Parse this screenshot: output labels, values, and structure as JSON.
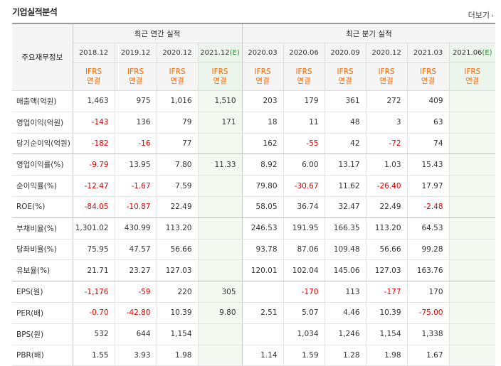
{
  "title": "기업실적분석",
  "more_label": "더보기",
  "row_header": "주요재무정보",
  "groups": {
    "annual": "최근 연간 실적",
    "quarterly": "최근 분기 실적"
  },
  "periods": [
    {
      "label": "2018.12",
      "e": ""
    },
    {
      "label": "2019.12",
      "e": ""
    },
    {
      "label": "2020.12",
      "e": ""
    },
    {
      "label": "2021.12",
      "e": "(E)"
    },
    {
      "label": "2020.03",
      "e": ""
    },
    {
      "label": "2020.06",
      "e": ""
    },
    {
      "label": "2020.09",
      "e": ""
    },
    {
      "label": "2020.12",
      "e": ""
    },
    {
      "label": "2021.03",
      "e": ""
    },
    {
      "label": "2021.06",
      "e": "(E)"
    }
  ],
  "basis": {
    "line1": "IFRS",
    "line2": "연결"
  },
  "rows": [
    {
      "label": "매출액(억원)",
      "values": [
        "1,463",
        "975",
        "1,016",
        "1,510",
        "203",
        "179",
        "361",
        "272",
        "409",
        ""
      ]
    },
    {
      "label": "영업이익(억원)",
      "values": [
        "-143",
        "136",
        "79",
        "171",
        "18",
        "11",
        "48",
        "3",
        "63",
        ""
      ]
    },
    {
      "label": "당기순이익(억원)",
      "values": [
        "-182",
        "-16",
        "77",
        "",
        "162",
        "-55",
        "42",
        "-72",
        "74",
        ""
      ]
    },
    {
      "label": "영업이익률(%)",
      "values": [
        "-9.79",
        "13.95",
        "7.80",
        "11.33",
        "8.92",
        "6.00",
        "13.17",
        "1.03",
        "15.43",
        ""
      ]
    },
    {
      "label": "순이익률(%)",
      "values": [
        "-12.47",
        "-1.67",
        "7.59",
        "",
        "79.80",
        "-30.67",
        "11.62",
        "-26.40",
        "17.97",
        ""
      ]
    },
    {
      "label": "ROE(%)",
      "values": [
        "-84.05",
        "-10.87",
        "22.49",
        "",
        "58.05",
        "36.74",
        "32.47",
        "22.49",
        "-2.48",
        ""
      ]
    },
    {
      "label": "부채비율(%)",
      "values": [
        "1,301.02",
        "430.99",
        "113.20",
        "",
        "246.53",
        "191.95",
        "166.35",
        "113.20",
        "64.53",
        ""
      ]
    },
    {
      "label": "당좌비율(%)",
      "values": [
        "75.95",
        "47.57",
        "56.66",
        "",
        "93.78",
        "87.06",
        "109.48",
        "56.66",
        "99.28",
        ""
      ]
    },
    {
      "label": "유보율(%)",
      "values": [
        "21.71",
        "23.27",
        "127.03",
        "",
        "120.01",
        "102.04",
        "145.06",
        "127.03",
        "163.76",
        ""
      ]
    },
    {
      "label": "EPS(원)",
      "values": [
        "-1,176",
        "-59",
        "220",
        "305",
        "",
        "-170",
        "113",
        "-177",
        "170",
        ""
      ]
    },
    {
      "label": "PER(배)",
      "values": [
        "-0.70",
        "-42.80",
        "10.39",
        "9.80",
        "2.51",
        "5.07",
        "4.46",
        "10.39",
        "-75.00",
        ""
      ]
    },
    {
      "label": "BPS(원)",
      "values": [
        "532",
        "644",
        "1,154",
        "",
        "",
        "1,034",
        "1,246",
        "1,154",
        "1,338",
        ""
      ]
    },
    {
      "label": "PBR(배)",
      "values": [
        "1.55",
        "3.93",
        "1.98",
        "",
        "1.14",
        "1.59",
        "1.28",
        "1.98",
        "1.67",
        ""
      ]
    }
  ],
  "colors": {
    "negative": "#e00000",
    "basis": "#ff6a00",
    "estimate_bg": "#f3f9f1",
    "estimate_mark": "#2e8b2e"
  }
}
